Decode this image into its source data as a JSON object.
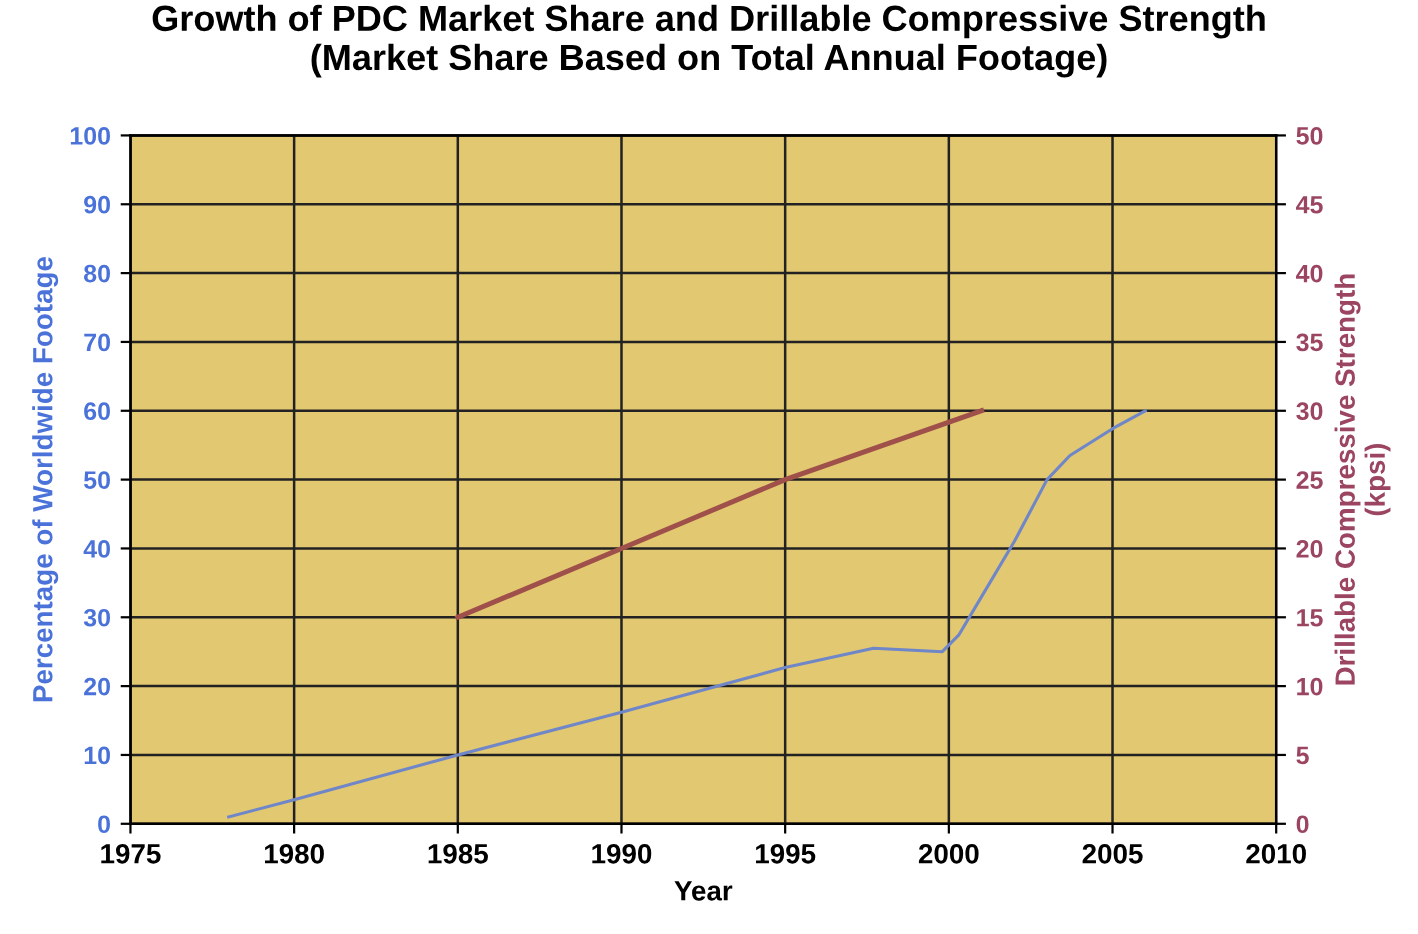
{
  "chart_data": {
    "type": "line",
    "title": "Growth of PDC Market Share and Drillable Compressive Strength\n(Market Share Based on Total Annual Footage)",
    "xlabel": "Year",
    "ylabel": "Percentage of Worldwide Footage",
    "y2label": "Drillable Compressive Strength\n(kpsi)",
    "series": [
      {
        "color": "#6f86c8",
        "x": [
          1978,
          1980,
          1985,
          1990,
          1995,
          1997.7,
          1999.8,
          2000.3,
          2001,
          2002,
          2003,
          2003.7,
          2005,
          2006
        ],
        "values": [
          1,
          3.5,
          10,
          16.2,
          22.7,
          25.5,
          25,
          27.4,
          33,
          41,
          50,
          53.5,
          57.4,
          60
        ]
      },
      {
        "color": "#a0504a",
        "axis": "y2",
        "x": [
          1985,
          1990,
          1995,
          2001
        ],
        "values": [
          15,
          20,
          25,
          30
        ]
      }
    ],
    "xlim": [
      1975,
      2010
    ],
    "xticks": [
      1975,
      1980,
      1985,
      1990,
      1995,
      2000,
      2005,
      2010
    ],
    "ylim": [
      0,
      100
    ],
    "yticks": [
      0,
      10,
      20,
      30,
      40,
      50,
      60,
      70,
      80,
      90,
      100
    ],
    "y2lim": [
      0,
      50
    ],
    "y2ticks": [
      0,
      5,
      10,
      15,
      20,
      25,
      30,
      35,
      40,
      45,
      50
    ],
    "grid": true
  }
}
